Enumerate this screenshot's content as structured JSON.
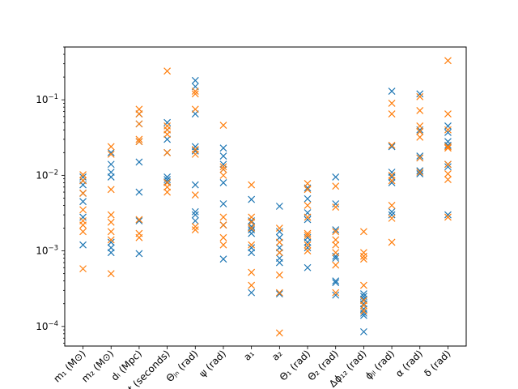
{
  "chart_data": {
    "type": "scatter",
    "yscale": "log",
    "ylim": [
      5.5e-05,
      0.5
    ],
    "grid": false,
    "legend": "none",
    "xlabel": "",
    "ylabel": "",
    "marker": "x",
    "categories": [
      "m₁ (M⊙)",
      "m₂ (M⊙)",
      "dₗ (Mpc)",
      "t (seconds)",
      "Θⱼₙ (rad)",
      "ψ (rad)",
      "a₁",
      "a₂",
      "Θ₁ (rad)",
      "Θ₂ (rad)",
      "Δϕ₁₂ (rad)",
      "ϕⱼₗ (rad)",
      "α (rad)",
      "δ (rad)"
    ],
    "yticks": [
      {
        "value": 0.0001,
        "base": "10",
        "exp": "−4"
      },
      {
        "value": 0.001,
        "base": "10",
        "exp": "−3"
      },
      {
        "value": 0.01,
        "base": "10",
        "exp": "−2"
      },
      {
        "value": 0.1,
        "base": "10",
        "exp": "−1"
      }
    ],
    "series": [
      {
        "color": "#1f77b4",
        "values": [
          [
            0.0012,
            0.0045,
            0.0058,
            0.0075,
            0.0085,
            0.0095,
            0.0028
          ],
          [
            0.00095,
            0.0011,
            0.0013,
            0.0095,
            0.011,
            0.014,
            0.02
          ],
          [
            0.00092,
            0.0025,
            0.006,
            0.015,
            0.028,
            0.048,
            0.065
          ],
          [
            0.0082,
            0.0088,
            0.0095,
            0.02,
            0.03,
            0.04,
            0.05
          ],
          [
            0.0025,
            0.003,
            0.0033,
            0.0075,
            0.021,
            0.024,
            0.065,
            0.15,
            0.18
          ],
          [
            0.00078,
            0.0022,
            0.0042,
            0.008,
            0.012,
            0.014,
            0.018,
            0.023
          ],
          [
            0.00028,
            0.00095,
            0.0011,
            0.0017,
            0.0019,
            0.0021,
            0.0025,
            0.0048
          ],
          [
            0.00027,
            0.0007,
            0.0008,
            0.00095,
            0.0011,
            0.0015,
            0.0018,
            0.0039
          ],
          [
            0.0006,
            0.0011,
            0.0013,
            0.0015,
            0.0026,
            0.0032,
            0.0049,
            0.0068
          ],
          [
            0.00026,
            0.00038,
            0.0004,
            0.0008,
            0.00085,
            0.0019,
            0.0042,
            0.0095
          ],
          [
            8.5e-05,
            0.00014,
            0.00015,
            0.00017,
            0.0002,
            0.00023,
            0.00025,
            0.00027
          ],
          [
            0.003,
            0.0033,
            0.008,
            0.0095,
            0.011,
            0.024,
            0.13
          ],
          [
            0.0105,
            0.0115,
            0.017,
            0.018,
            0.038,
            0.04,
            0.12
          ],
          [
            0.003,
            0.013,
            0.014,
            0.025,
            0.028,
            0.037,
            0.045
          ]
        ]
      },
      {
        "color": "#ff7f0e",
        "values": [
          [
            0.00058,
            0.0018,
            0.0022,
            0.0025,
            0.0035,
            0.0058,
            0.0085,
            0.0102
          ],
          [
            0.0005,
            0.0014,
            0.0018,
            0.0024,
            0.003,
            0.0065,
            0.019,
            0.024
          ],
          [
            0.0015,
            0.0017,
            0.0026,
            0.028,
            0.03,
            0.048,
            0.065,
            0.075
          ],
          [
            0.006,
            0.007,
            0.008,
            0.02,
            0.035,
            0.04,
            0.045,
            0.24
          ],
          [
            0.0019,
            0.0021,
            0.0055,
            0.019,
            0.022,
            0.075,
            0.12,
            0.13
          ],
          [
            0.0012,
            0.0015,
            0.0022,
            0.0028,
            0.01,
            0.012,
            0.013,
            0.046
          ],
          [
            0.00035,
            0.00052,
            0.0012,
            0.002,
            0.0024,
            0.0028,
            0.0075
          ],
          [
            8.2e-05,
            0.00028,
            0.00048,
            0.00095,
            0.0013,
            0.002
          ],
          [
            0.001,
            0.0012,
            0.0016,
            0.0017,
            0.0028,
            0.004,
            0.0065,
            0.0078
          ],
          [
            0.00028,
            0.00065,
            0.00095,
            0.0012,
            0.0014,
            0.0018,
            0.0038,
            0.0072
          ],
          [
            0.00016,
            0.00019,
            0.00022,
            0.00035,
            0.00078,
            0.00085,
            0.00095,
            0.0018
          ],
          [
            0.0013,
            0.0027,
            0.004,
            0.0085,
            0.01,
            0.025,
            0.065,
            0.09
          ],
          [
            0.011,
            0.017,
            0.032,
            0.038,
            0.045,
            0.072,
            0.11
          ],
          [
            0.0028,
            0.0088,
            0.0105,
            0.014,
            0.023,
            0.024,
            0.04,
            0.065,
            0.33
          ]
        ]
      }
    ]
  }
}
